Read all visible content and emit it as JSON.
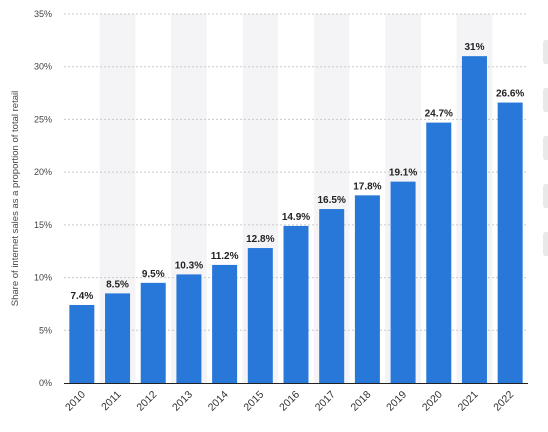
{
  "colors": {
    "bar": "#2878d9",
    "band": "#f4f4f6",
    "grid": "#c9c9c9",
    "axis": "#222222"
  },
  "chart_data": {
    "type": "bar",
    "title": "",
    "xlabel": "",
    "ylabel": "Share of internet sales as a proportion of total retail",
    "categories": [
      "2010",
      "2011",
      "2012",
      "2013",
      "2014",
      "2015",
      "2016",
      "2017",
      "2018",
      "2019",
      "2020",
      "2021",
      "2022"
    ],
    "values": [
      7.4,
      8.5,
      9.5,
      10.3,
      11.2,
      12.8,
      14.9,
      16.5,
      17.8,
      19.1,
      24.7,
      31,
      26.6
    ],
    "data_labels": [
      "7.4%",
      "8.5%",
      "9.5%",
      "10.3%",
      "11.2%",
      "12.8%",
      "14.9%",
      "16.5%",
      "17.8%",
      "19.1%",
      "24.7%",
      "31%",
      "26.6%"
    ],
    "ylim": [
      0,
      35
    ],
    "yticks": [
      0,
      5,
      10,
      15,
      20,
      25,
      30,
      35
    ],
    "ytick_labels": [
      "0%",
      "5%",
      "10%",
      "15%",
      "20%",
      "25%",
      "30%",
      "35%"
    ],
    "grid": true,
    "legend": "none"
  }
}
